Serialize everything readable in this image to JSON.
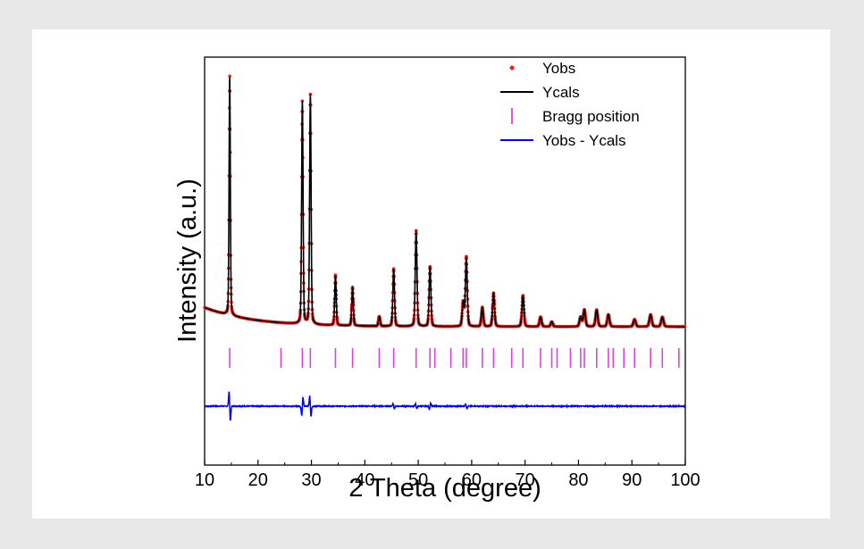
{
  "chart_data": {
    "type": "line",
    "title": "",
    "xlabel": "2 Theta (degree)",
    "ylabel": "Intensity (a.u.)",
    "xlim": [
      10,
      100
    ],
    "xticks": [
      10,
      20,
      30,
      40,
      50,
      60,
      70,
      80,
      90,
      100
    ],
    "y_ticks_shown": false,
    "background_level": 8,
    "peaks": [
      {
        "x": 14.7,
        "h": 100
      },
      {
        "x": 28.3,
        "h": 93
      },
      {
        "x": 29.8,
        "h": 96
      },
      {
        "x": 34.5,
        "h": 21
      },
      {
        "x": 37.7,
        "h": 16
      },
      {
        "x": 42.7,
        "h": 4
      },
      {
        "x": 45.4,
        "h": 24
      },
      {
        "x": 49.6,
        "h": 40
      },
      {
        "x": 52.2,
        "h": 25
      },
      {
        "x": 58.4,
        "h": 10
      },
      {
        "x": 59.0,
        "h": 29
      },
      {
        "x": 62.0,
        "h": 8
      },
      {
        "x": 64.1,
        "h": 14
      },
      {
        "x": 69.6,
        "h": 13
      },
      {
        "x": 72.9,
        "h": 4
      },
      {
        "x": 75.0,
        "h": 2
      },
      {
        "x": 80.4,
        "h": 4
      },
      {
        "x": 81.1,
        "h": 7
      },
      {
        "x": 83.4,
        "h": 7
      },
      {
        "x": 85.6,
        "h": 5
      },
      {
        "x": 90.5,
        "h": 3
      },
      {
        "x": 93.5,
        "h": 5
      },
      {
        "x": 95.7,
        "h": 4
      }
    ],
    "bragg_positions": [
      14.7,
      24.3,
      28.3,
      29.8,
      34.5,
      37.7,
      42.7,
      45.4,
      49.6,
      52.2,
      53.1,
      56.1,
      58.4,
      59.0,
      62.0,
      64.1,
      67.5,
      69.6,
      72.9,
      75.0,
      76.0,
      78.5,
      80.4,
      81.1,
      83.4,
      85.6,
      86.5,
      88.5,
      90.5,
      93.5,
      95.7,
      98.8
    ],
    "difference_features": [
      {
        "x": 14.7,
        "amp": 6.5
      },
      {
        "x": 28.3,
        "amp": -4
      },
      {
        "x": 29.8,
        "amp": 4.5
      },
      {
        "x": 45.4,
        "amp": 1
      },
      {
        "x": 49.6,
        "amp": 1.2
      },
      {
        "x": 52.2,
        "amp": -1.3
      },
      {
        "x": 59.0,
        "amp": 1
      }
    ],
    "legend": {
      "position": "top-right",
      "entries": [
        {
          "label": "Yobs",
          "style": "dots",
          "color": "#ff1a1a"
        },
        {
          "label": "Ycals",
          "style": "line",
          "color": "#000000"
        },
        {
          "label": "Bragg position",
          "style": "tick",
          "color": "#e040e0"
        },
        {
          "label": "Yobs - Ycals",
          "style": "line",
          "color": "#0000ff"
        }
      ]
    }
  }
}
